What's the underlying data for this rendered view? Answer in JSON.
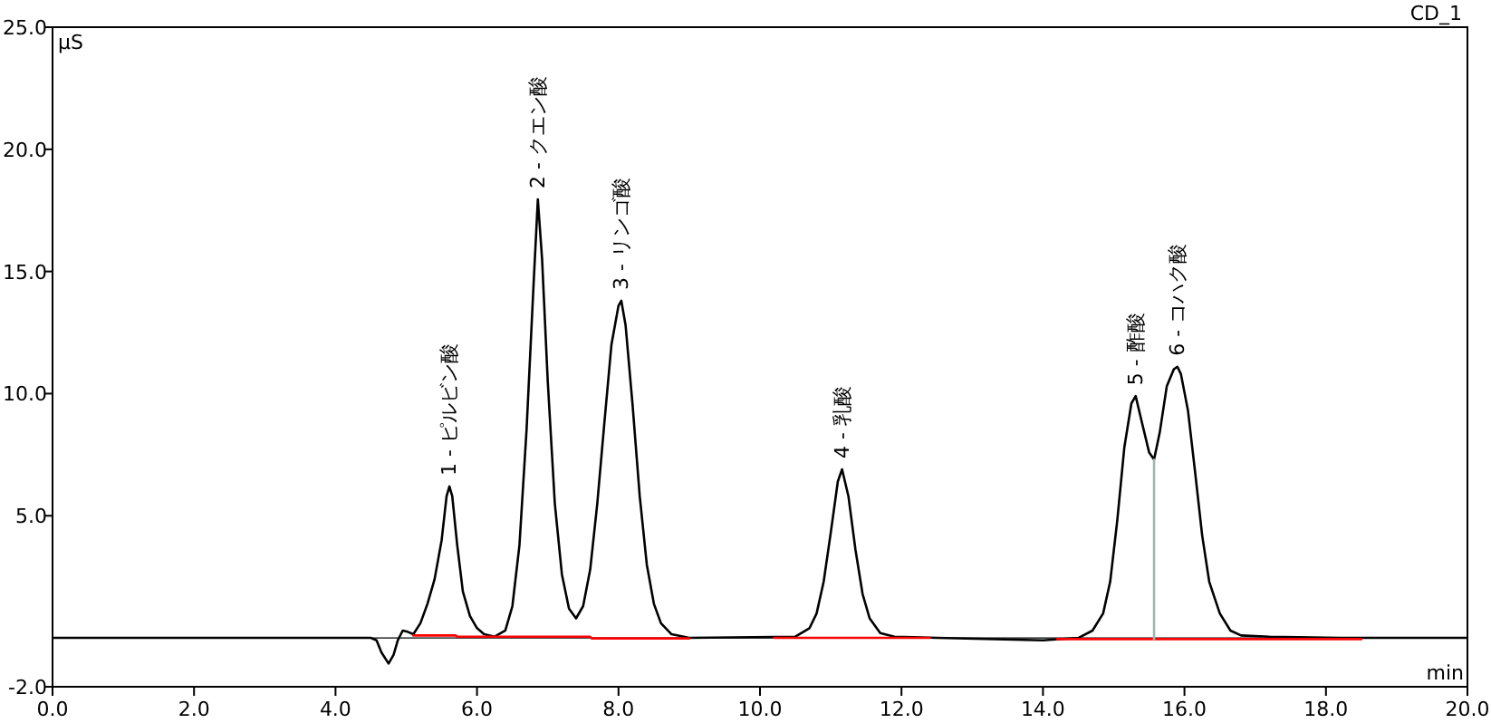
{
  "chart_data": {
    "type": "line",
    "xlabel": "min",
    "ylabel": "μS",
    "annotations": [
      "CD_1",
      {
        "text": "1 - ピルビン酸",
        "x": 5.61,
        "y": 6.2
      },
      {
        "text": "2 - クエン酸",
        "x": 6.86,
        "y": 17.95
      },
      {
        "text": "3 - リンゴ酸",
        "x": 8.04,
        "y": 13.8
      },
      {
        "text": "4 - 乳酸",
        "x": 11.16,
        "y": 6.9
      },
      {
        "text": "5 - 酢酸",
        "x": 15.31,
        "y": 9.9
      },
      {
        "text": "6 - コハク酸",
        "x": 15.9,
        "y": 11.1
      }
    ],
    "series": [
      {
        "color": "#000000",
        "x": [
          0,
          4.5,
          4.58,
          4.65,
          4.75,
          4.82,
          4.88,
          4.95,
          5.02,
          5.1,
          5.2,
          5.3,
          5.4,
          5.5,
          5.57,
          5.61,
          5.65,
          5.72,
          5.8,
          5.9,
          6.0,
          6.1,
          6.25,
          6.4,
          6.5,
          6.6,
          6.7,
          6.8,
          6.86,
          6.92,
          7.0,
          7.1,
          7.2,
          7.3,
          7.4,
          7.5,
          7.6,
          7.7,
          7.8,
          7.9,
          8.0,
          8.04,
          8.1,
          8.2,
          8.3,
          8.4,
          8.5,
          8.6,
          8.75,
          9.0,
          10.5,
          10.7,
          10.8,
          10.9,
          11.0,
          11.1,
          11.16,
          11.25,
          11.35,
          11.45,
          11.55,
          11.7,
          11.9,
          12.5,
          14.0,
          14.5,
          14.7,
          14.85,
          14.95,
          15.05,
          15.15,
          15.25,
          15.31,
          15.4,
          15.5,
          15.57,
          15.65,
          15.75,
          15.85,
          15.9,
          15.95,
          16.05,
          16.15,
          16.25,
          16.35,
          16.5,
          16.65,
          16.8,
          17.2,
          18.2,
          20
        ],
        "values": [
          0,
          0,
          -0.1,
          -0.6,
          -1.05,
          -0.7,
          -0.1,
          0.3,
          0.25,
          0.15,
          0.6,
          1.4,
          2.4,
          4.0,
          5.8,
          6.2,
          5.8,
          3.8,
          1.9,
          0.9,
          0.4,
          0.15,
          0.05,
          0.3,
          1.3,
          3.8,
          8.5,
          14.5,
          17.95,
          15.5,
          10.5,
          5.5,
          2.6,
          1.2,
          0.8,
          1.3,
          2.8,
          5.5,
          8.8,
          12.0,
          13.6,
          13.8,
          12.8,
          9.5,
          5.8,
          3.0,
          1.4,
          0.6,
          0.15,
          0,
          0.05,
          0.4,
          1.0,
          2.3,
          4.3,
          6.4,
          6.9,
          5.8,
          3.6,
          1.8,
          0.8,
          0.2,
          0.05,
          0,
          -0.1,
          0,
          0.3,
          1.0,
          2.3,
          4.8,
          7.8,
          9.6,
          9.9,
          8.8,
          7.6,
          7.3,
          8.4,
          10.3,
          11.0,
          11.1,
          10.8,
          9.3,
          6.8,
          4.2,
          2.3,
          1.0,
          0.3,
          0.1,
          0.05,
          0,
          0
        ]
      },
      {
        "color": "#ff0000",
        "x": [
          5.1,
          5.7,
          5.72,
          7.6,
          7.62,
          9.0,
          9.5,
          10.2,
          12.4,
          12.9,
          14.2,
          18.5
        ],
        "values": [
          0.1,
          0.1,
          0.05,
          0.05,
          -0.02,
          -0.02,
          null,
          0,
          0,
          null,
          -0.05,
          -0.05
        ]
      },
      {
        "color": "#a0b4b4",
        "x": [
          15.57,
          15.57
        ],
        "values": [
          -0.05,
          7.3
        ]
      }
    ],
    "xlim": [
      0,
      20
    ],
    "ylim": [
      -2,
      25
    ],
    "xticks": [
      {
        "value": 0,
        "label": "0.0"
      },
      {
        "value": 2,
        "label": "2.0"
      },
      {
        "value": 4,
        "label": "4.0"
      },
      {
        "value": 6,
        "label": "6.0"
      },
      {
        "value": 8,
        "label": "8.0"
      },
      {
        "value": 10,
        "label": "10.0"
      },
      {
        "value": 12,
        "label": "12.0"
      },
      {
        "value": 14,
        "label": "14.0"
      },
      {
        "value": 16,
        "label": "16.0"
      },
      {
        "value": 18,
        "label": "18.0"
      },
      {
        "value": 20,
        "label": "20.0"
      }
    ],
    "yticks": [
      {
        "value": -2,
        "label": "-2.0"
      },
      {
        "value": 5,
        "label": "5.0"
      },
      {
        "value": 10,
        "label": "10.0"
      },
      {
        "value": 15,
        "label": "15.0"
      },
      {
        "value": 20,
        "label": "20.0"
      },
      {
        "value": 25,
        "label": "25.0"
      }
    ],
    "grid": false,
    "marker": "none",
    "line_style": "solid"
  }
}
